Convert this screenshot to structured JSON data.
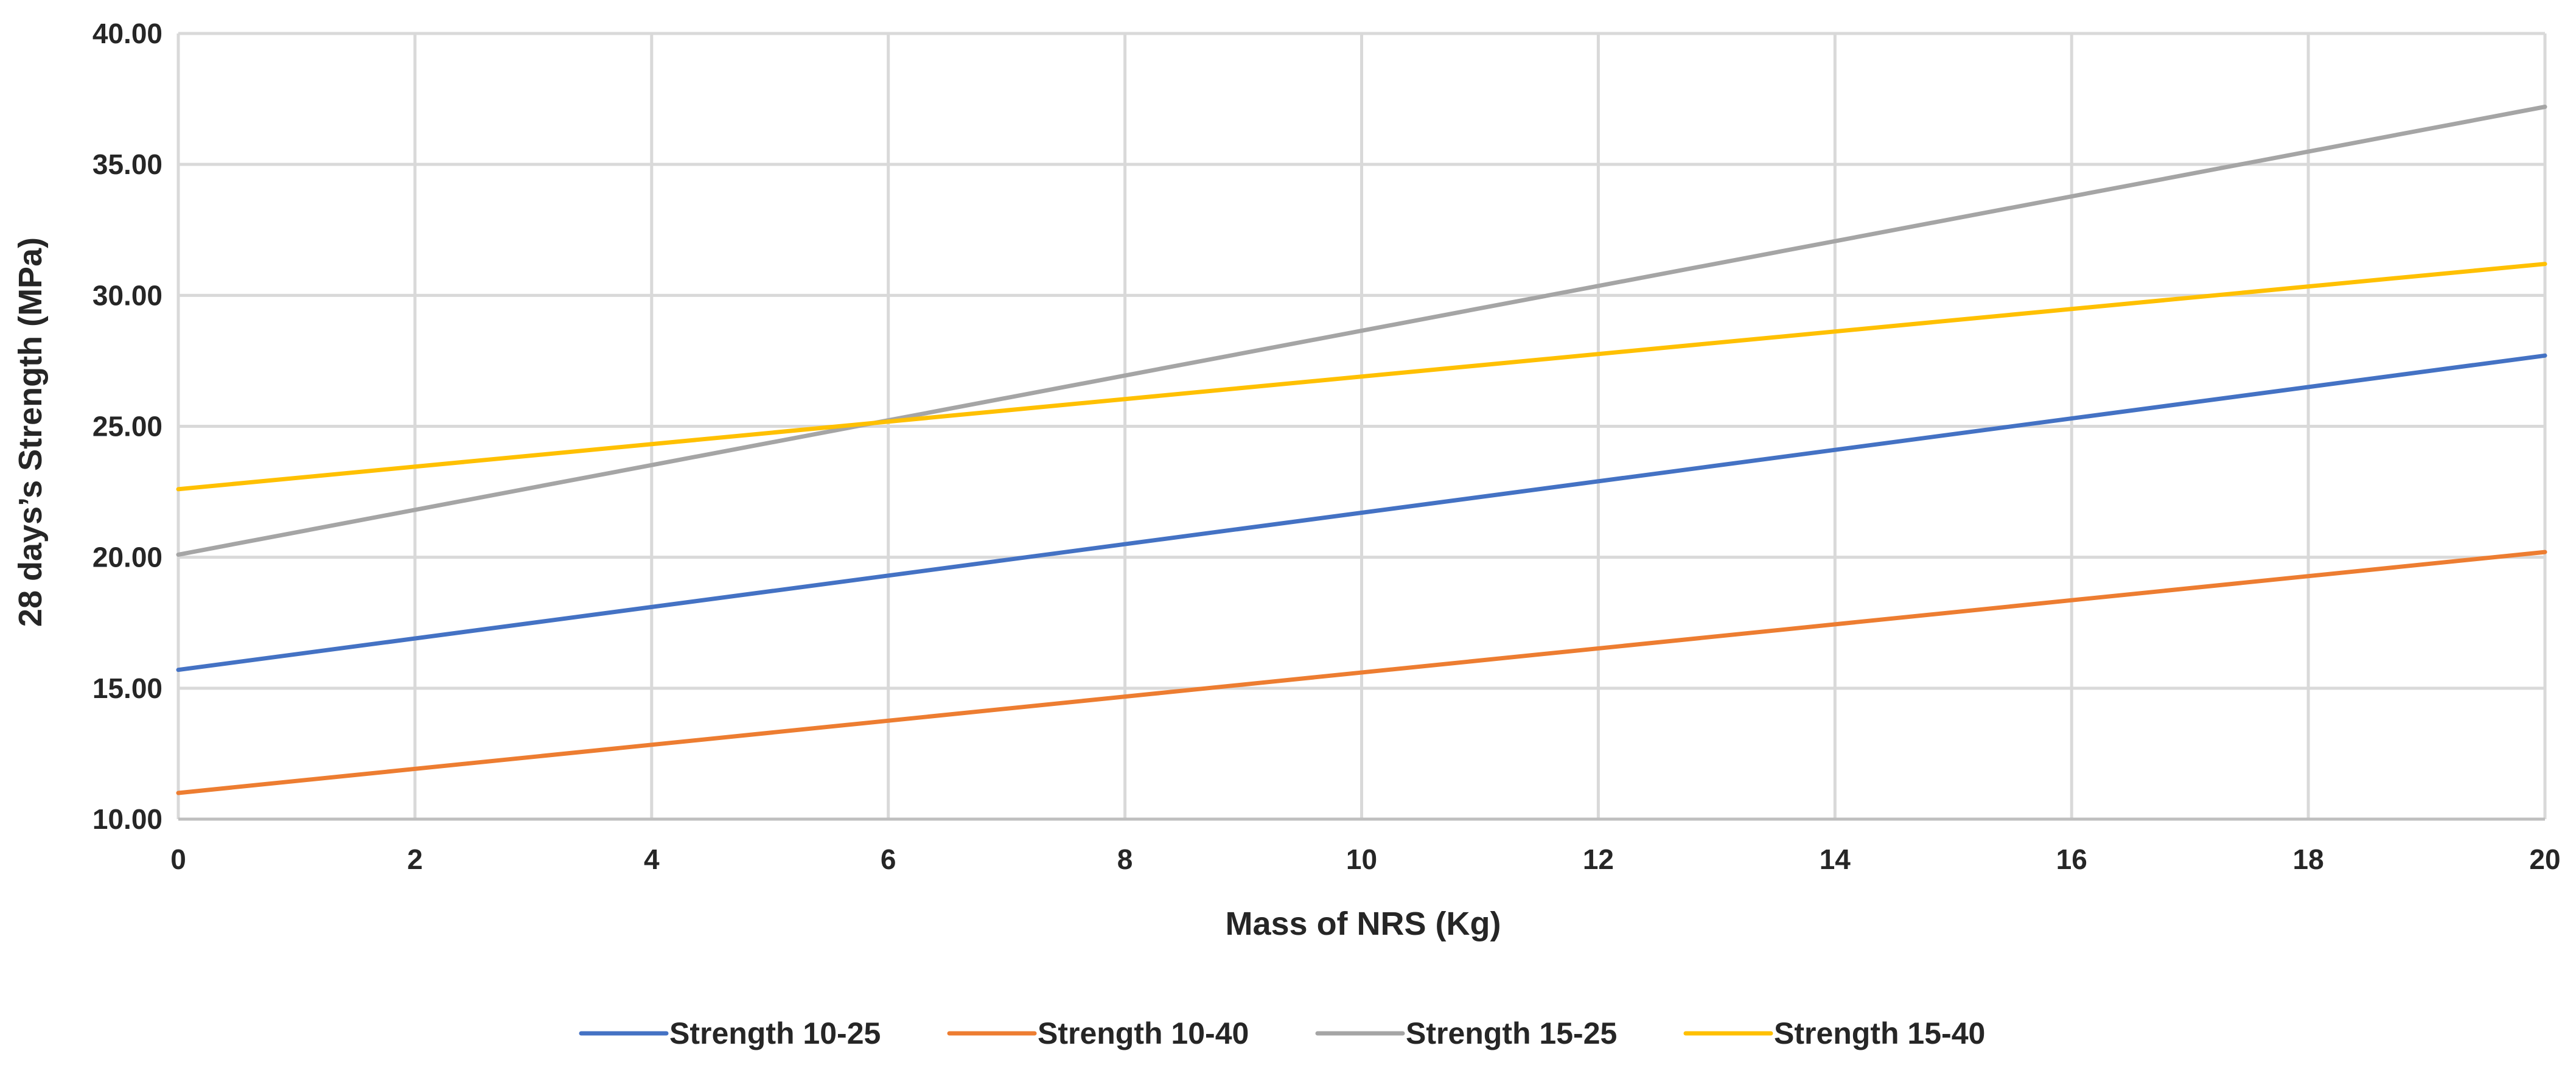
{
  "chart_data": {
    "type": "line",
    "title": "",
    "xlabel": "Mass of NRS (Kg)",
    "ylabel": "28 days’s Strength  (MPa)",
    "xlim": [
      0,
      20
    ],
    "ylim": [
      10,
      40
    ],
    "x_ticks": [
      "0",
      "2",
      "4",
      "6",
      "8",
      "10",
      "12",
      "14",
      "16",
      "18",
      "20"
    ],
    "y_ticks": [
      "10.00",
      "15.00",
      "20.00",
      "25.00",
      "30.00",
      "35.00",
      "40.00"
    ],
    "grid": true,
    "legend_position": "bottom",
    "x": [
      0,
      20
    ],
    "series": [
      {
        "name": "Strength 10-25",
        "color": "#4472c4",
        "values": [
          15.7,
          27.7
        ]
      },
      {
        "name": "Strength 10-40",
        "color": "#ed7d31",
        "values": [
          11.0,
          20.2
        ]
      },
      {
        "name": "Strength 15-25",
        "color": "#a5a5a5",
        "values": [
          20.1,
          37.2
        ]
      },
      {
        "name": "Strength 15-40",
        "color": "#ffc000",
        "values": [
          22.6,
          31.2
        ]
      }
    ]
  }
}
